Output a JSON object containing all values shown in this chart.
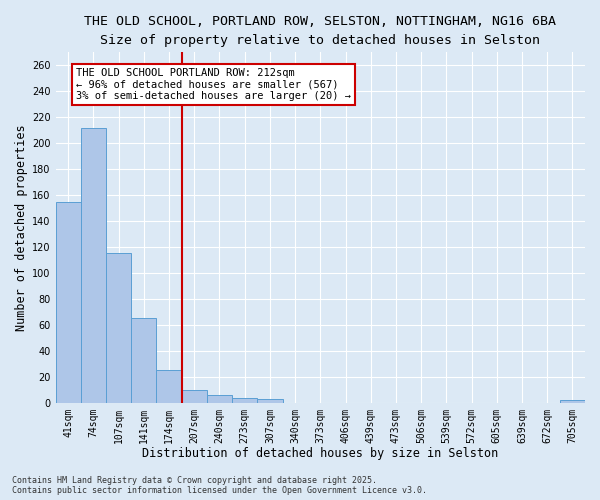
{
  "title_line1": "THE OLD SCHOOL, PORTLAND ROW, SELSTON, NOTTINGHAM, NG16 6BA",
  "title_line2": "Size of property relative to detached houses in Selston",
  "xlabel": "Distribution of detached houses by size in Selston",
  "ylabel": "Number of detached properties",
  "categories": [
    "41sqm",
    "74sqm",
    "107sqm",
    "141sqm",
    "174sqm",
    "207sqm",
    "240sqm",
    "273sqm",
    "307sqm",
    "340sqm",
    "373sqm",
    "406sqm",
    "439sqm",
    "473sqm",
    "506sqm",
    "539sqm",
    "572sqm",
    "605sqm",
    "639sqm",
    "672sqm",
    "705sqm"
  ],
  "values": [
    155,
    212,
    115,
    65,
    25,
    10,
    6,
    4,
    3,
    0,
    0,
    0,
    0,
    0,
    0,
    0,
    0,
    0,
    0,
    0,
    2
  ],
  "bar_color": "#aec6e8",
  "bar_edge_color": "#5a9fd4",
  "vline_color": "#cc0000",
  "vline_x": 4.5,
  "annotation_text": "THE OLD SCHOOL PORTLAND ROW: 212sqm\n← 96% of detached houses are smaller (567)\n3% of semi-detached houses are larger (20) →",
  "annotation_box_color": "#ffffff",
  "annotation_box_edge_color": "#cc0000",
  "ylim": [
    0,
    270
  ],
  "yticks": [
    0,
    20,
    40,
    60,
    80,
    100,
    120,
    140,
    160,
    180,
    200,
    220,
    240,
    260
  ],
  "background_color": "#dce9f5",
  "figure_color": "#dce9f5",
  "grid_color": "#ffffff",
  "footer_text": "Contains HM Land Registry data © Crown copyright and database right 2025.\nContains public sector information licensed under the Open Government Licence v3.0.",
  "title_fontsize": 9.5,
  "subtitle_fontsize": 9.5,
  "tick_fontsize": 7,
  "label_fontsize": 8.5,
  "annotation_fontsize": 7.5
}
